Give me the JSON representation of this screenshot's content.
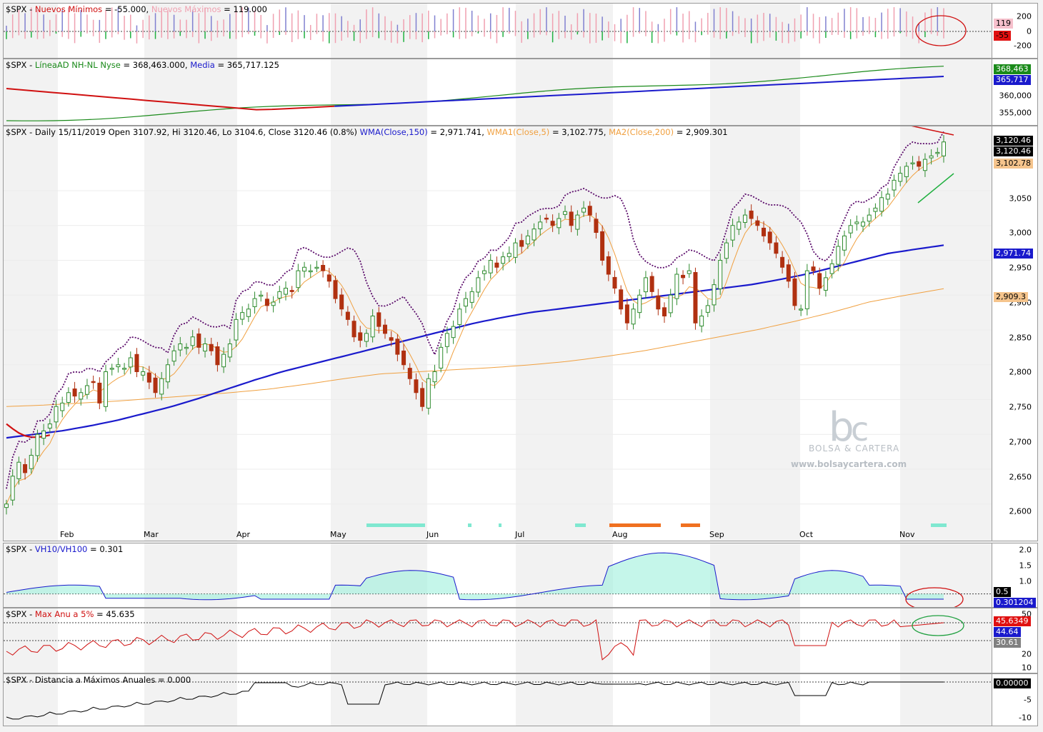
{
  "panels": {
    "nh": {
      "ticker": "$SPX - ",
      "s1": "Nuevos Mínimos",
      "v1": " = -55.000, ",
      "s2": "Nuevos Máximos",
      "v2": " = 119.000",
      "ticks": [
        "200",
        "0",
        "-200"
      ],
      "tag_a": "119",
      "tag_b": "-55"
    },
    "ad": {
      "ticker": "$SPX - ",
      "s1": "LíneaAD NH-NL Nyse",
      "v1": " = 368,463.000, ",
      "s2": "Media",
      "v2": " = 365,717.125",
      "ticks": [
        "360,000",
        "355,000"
      ],
      "tag_a": "368,463",
      "tag_b": "365,717"
    },
    "main": {
      "p1": "$SPX - Daily 15/11/2019 Open 3107.92, Hi 3120.46, Lo 3104.6, Close 3120.46 (0.8%) ",
      "s1": "WMA(Close,150)",
      "v1": " = 2,971.741, ",
      "s2": "WMA1(Close,5)",
      "v2": " = 3,102.775, ",
      "s3": "MA2(Close,200)",
      "v3": " = 2,909.301",
      "ticks": [
        "3,050",
        "3,000",
        "2,950",
        "2,900",
        "2,850",
        "2,800",
        "2,750",
        "2,700",
        "2,650",
        "2,600"
      ],
      "tag_close1": "3,120.46",
      "tag_close2": "3,120.46",
      "tag_wma5": "3,102.78",
      "tag_wma150": "2,971.74",
      "tag_ma200": "2,909.3"
    },
    "vh": {
      "ticker": "$SPX - ",
      "s1": "VH10/VH100",
      "v1": " = 0.301",
      "ticks": [
        "2.0",
        "1.5",
        "1.0"
      ],
      "tag_a": "0.5",
      "tag_b": "0.301204"
    },
    "mx": {
      "ticker": "$SPX - ",
      "s1": "Max Anu a 5%",
      "v1": " = 45.635",
      "ticks": [
        "50",
        "20",
        "10"
      ],
      "tag_a": "45.6349",
      "tag_b": "44.64",
      "tag_c": "30.61"
    },
    "dist": {
      "title": "$SPX - Distancia a Máximos Anuales = 0.000",
      "ticks": [
        "-5",
        "-10"
      ],
      "tag_a": "0.00000"
    }
  },
  "months": [
    "Feb",
    "Mar",
    "Apr",
    "May",
    "Jun",
    "Jul",
    "Aug",
    "Sep",
    "Oct",
    "Nov"
  ],
  "watermark": {
    "line1": "BOLSA & CARTERA",
    "line2": "www.bolsaycartera.com"
  },
  "colors": {
    "wma150": "#1a1acc",
    "wma5": "#f0a040",
    "ma200": "#f0a040",
    "up_candle": "#2e8b2e",
    "down_candle": "#b03010",
    "max_line": "#5a0a6a",
    "ad_line": "#1a8a1a",
    "ad_media": "#1a1acc",
    "highlight": "#d01010"
  },
  "chart_data": {
    "type": "line",
    "title": "$SPX - Daily 15/11/2019 Open 3107.92, Hi 3120.46, Lo 3104.6, Close 3120.46 (0.8%)",
    "x_ticks": [
      "Feb",
      "Mar",
      "Apr",
      "May",
      "Jun",
      "Jul",
      "Aug",
      "Sep",
      "Oct",
      "Nov"
    ],
    "ylim": [
      2570,
      3130
    ],
    "last_values": {
      "Close": 3120.46,
      "WMA(Close,150)": 2971.741,
      "WMA1(Close,5)": 3102.775,
      "MA2(Close,200)": 2909.301,
      "Nuevos Mínimos": -55,
      "Nuevos Máximos": 119,
      "LíneaAD NH-NL Nyse": 368463,
      "Media": 365717.125,
      "VH10/VH100": 0.301,
      "Max Anu a 5%": 45.635,
      "Distancia a Máximos Anuales": 0
    },
    "close_series": [
      2600,
      2640,
      2660,
      2645,
      2670,
      2700,
      2705,
      2715,
      2740,
      2745,
      2760,
      2755,
      2760,
      2770,
      2775,
      2745,
      2790,
      2795,
      2800,
      2795,
      2810,
      2790,
      2790,
      2775,
      2760,
      2780,
      2800,
      2820,
      2830,
      2825,
      2840,
      2825,
      2830,
      2820,
      2800,
      2815,
      2830,
      2865,
      2875,
      2880,
      2895,
      2900,
      2885,
      2890,
      2905,
      2910,
      2905,
      2935,
      2940,
      2935,
      2940,
      2935,
      2920,
      2895,
      2880,
      2865,
      2840,
      2835,
      2845,
      2870,
      2855,
      2845,
      2835,
      2815,
      2800,
      2780,
      2760,
      2740,
      2780,
      2790,
      2825,
      2845,
      2855,
      2880,
      2895,
      2905,
      2925,
      2935,
      2950,
      2940,
      2955,
      2960,
      2975,
      2970,
      2985,
      2995,
      3005,
      3010,
      3000,
      3010,
      3020,
      3000,
      3015,
      3025,
      3015,
      2990,
      2950,
      2930,
      2910,
      2880,
      2860,
      2880,
      2900,
      2925,
      2905,
      2880,
      2870,
      2900,
      2930,
      2925,
      2935,
      2860,
      2870,
      2885,
      2915,
      2950,
      2975,
      3000,
      3005,
      3015,
      3010,
      3000,
      2985,
      2975,
      2960,
      2940,
      2920,
      2885,
      2880,
      2935,
      2935,
      2910,
      2925,
      2945,
      2970,
      2985,
      3000,
      3005,
      3005,
      3015,
      3025,
      3040,
      3045,
      3065,
      3075,
      3085,
      3090,
      3085,
      3095,
      3100,
      3105,
      3120
    ],
    "wma150_series": [
      2695,
      2700,
      2705,
      2712,
      2720,
      2730,
      2740,
      2752,
      2765,
      2778,
      2790,
      2800,
      2810,
      2820,
      2830,
      2840,
      2850,
      2860,
      2868,
      2875,
      2880,
      2885,
      2890,
      2895,
      2900,
      2905,
      2910,
      2915,
      2922,
      2930,
      2940,
      2950,
      2960,
      2966,
      2971.7
    ],
    "ma200_series": [
      2740,
      2742,
      2745,
      2748,
      2752,
      2756,
      2760,
      2765,
      2772,
      2780,
      2787,
      2790,
      2793,
      2796,
      2800,
      2805,
      2812,
      2820,
      2830,
      2840,
      2850,
      2862,
      2875,
      2890,
      2900,
      2909.3
    ]
  }
}
